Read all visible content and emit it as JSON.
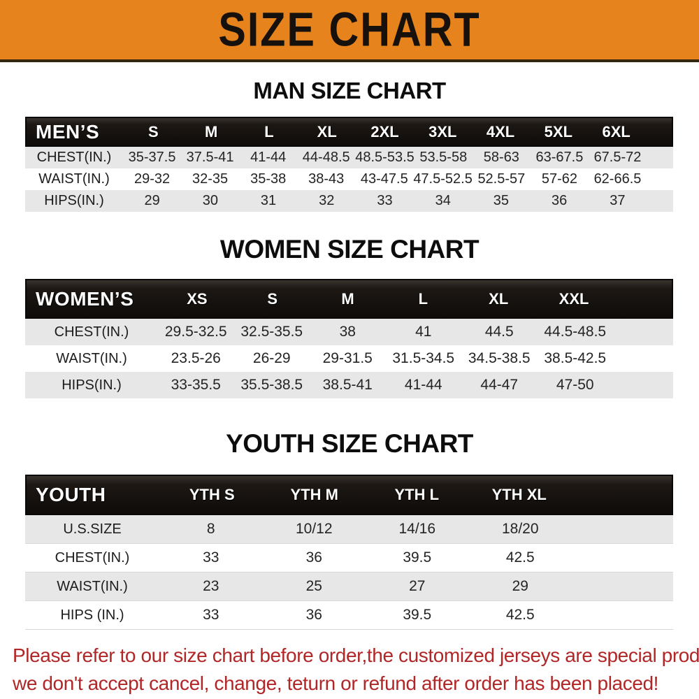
{
  "banner": {
    "title": "SIZE CHART"
  },
  "colors": {
    "banner_orange": "#e6831c",
    "header_bar_black": "#14100d",
    "row_gray": "#e7e7e7",
    "note_red": "#b12626"
  },
  "tables": {
    "men": {
      "section_title": "MAN SIZE CHART",
      "header": {
        "label": "MEN’S",
        "sizes": [
          "S",
          "M",
          "L",
          "XL",
          "2XL",
          "3XL",
          "4XL",
          "5XL",
          "6XL"
        ]
      },
      "rows": [
        {
          "label": "CHEST(IN.)",
          "values": [
            "35-37.5",
            "37.5-41",
            "41-44",
            "44-48.5",
            "48.5-53.5",
            "53.5-58",
            "58-63",
            "63-67.5",
            "67.5-72"
          ]
        },
        {
          "label": "WAIST(IN.)",
          "values": [
            "29-32",
            "32-35",
            "35-38",
            "38-43",
            "43-47.5",
            "47.5-52.5",
            "52.5-57",
            "57-62",
            "62-66.5"
          ]
        },
        {
          "label": "HIPS(IN.)",
          "values": [
            "29",
            "30",
            "31",
            "32",
            "33",
            "34",
            "35",
            "36",
            "37"
          ]
        }
      ]
    },
    "women": {
      "section_title": "WOMEN SIZE CHART",
      "header": {
        "label": "WOMEN’S",
        "sizes": [
          "XS",
          "S",
          "M",
          "L",
          "XL",
          "XXL"
        ]
      },
      "rows": [
        {
          "label": "CHEST(IN.)",
          "values": [
            "29.5-32.5",
            "32.5-35.5",
            "38",
            "41",
            "44.5",
            "44.5-48.5"
          ]
        },
        {
          "label": "WAIST(IN.)",
          "values": [
            "23.5-26",
            "26-29",
            "29-31.5",
            "31.5-34.5",
            "34.5-38.5",
            "38.5-42.5"
          ]
        },
        {
          "label": "HIPS(IN.)",
          "values": [
            "33-35.5",
            "35.5-38.5",
            "38.5-41",
            "41-44",
            "44-47",
            "47-50"
          ]
        }
      ]
    },
    "youth": {
      "section_title": "YOUTH SIZE CHART",
      "header": {
        "label": "YOUTH",
        "sizes": [
          "YTH S",
          "YTH M",
          "YTH L",
          "YTH XL"
        ]
      },
      "rows": [
        {
          "label": "U.S.SIZE",
          "values": [
            "8",
            "10/12",
            "14/16",
            "18/20"
          ]
        },
        {
          "label": "CHEST(IN.)",
          "values": [
            "33",
            "36",
            "39.5",
            "42.5"
          ]
        },
        {
          "label": "WAIST(IN.)",
          "values": [
            "23",
            "25",
            "27",
            "29"
          ]
        },
        {
          "label": "HIPS (IN.)",
          "values": [
            "33",
            "36",
            "39.5",
            "42.5"
          ]
        }
      ]
    }
  },
  "footer": {
    "line1": "Please refer to our size chart before order,the customized jerseys are special products,",
    "line2": "we don't accept cancel, change, teturn or refund after order has been placed!"
  }
}
